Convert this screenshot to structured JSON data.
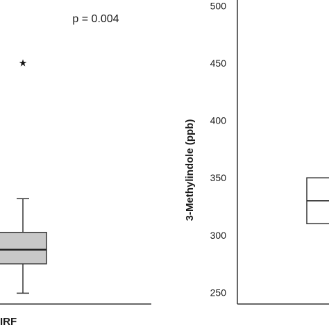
{
  "chart_data": [
    {
      "type": "box",
      "annotation": "p = 0.004",
      "categories": [
        "IRF"
      ],
      "boxes": [
        {
          "category": "IRF",
          "whisker_low": 250,
          "q1": 277,
          "median": 290,
          "q3": 306,
          "whisker_high": 337,
          "outliers": [
            462
          ]
        }
      ],
      "ylim": [
        240,
        520
      ],
      "fill_color": "#c8c8c8"
    },
    {
      "type": "box",
      "ylabel": "3-Methylindole (ppb)",
      "ylim": [
        240,
        505
      ],
      "yticks": [
        "250",
        "300",
        "350",
        "400",
        "450",
        "500"
      ],
      "boxes": [
        {
          "q1": 310,
          "median": 330,
          "q3": 350
        }
      ],
      "fill_color": "#ffffff"
    }
  ]
}
